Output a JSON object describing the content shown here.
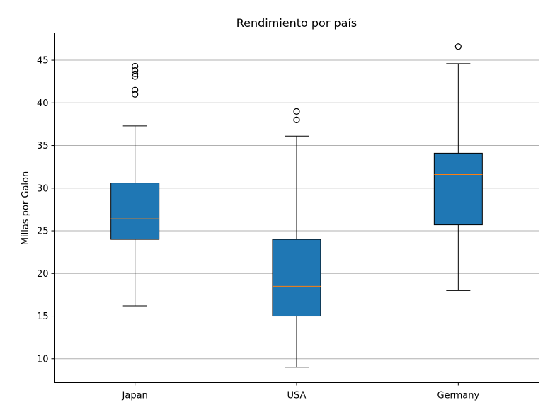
{
  "chart_data": {
    "type": "box",
    "title": "Rendimiento por país",
    "xlabel": "",
    "ylabel": "Millas por Galon",
    "categories": [
      "Japan",
      "USA",
      "Germany"
    ],
    "ylim": [
      7.2,
      48.2
    ],
    "yticks": [
      10,
      15,
      20,
      25,
      30,
      35,
      40,
      45
    ],
    "grid": "y",
    "colors": {
      "box_fill": "#1f77b4",
      "median": "#ff7f0e",
      "grid": "#b0b0b0",
      "line": "#000000"
    },
    "boxes": [
      {
        "category": "Japan",
        "whisker_low": 16.2,
        "q1": 24.0,
        "median": 26.4,
        "q3": 30.6,
        "whisker_high": 37.3,
        "outliers": [
          41.0,
          41.5,
          43.1,
          43.4,
          43.8,
          44.3
        ]
      },
      {
        "category": "USA",
        "whisker_low": 9.0,
        "q1": 15.0,
        "median": 18.5,
        "q3": 24.0,
        "whisker_high": 36.1,
        "outliers": [
          38.0,
          38.0,
          39.0
        ]
      },
      {
        "category": "Germany",
        "whisker_low": 18.0,
        "q1": 25.7,
        "median": 31.6,
        "q3": 34.1,
        "whisker_high": 44.6,
        "outliers": [
          46.6
        ]
      }
    ]
  }
}
